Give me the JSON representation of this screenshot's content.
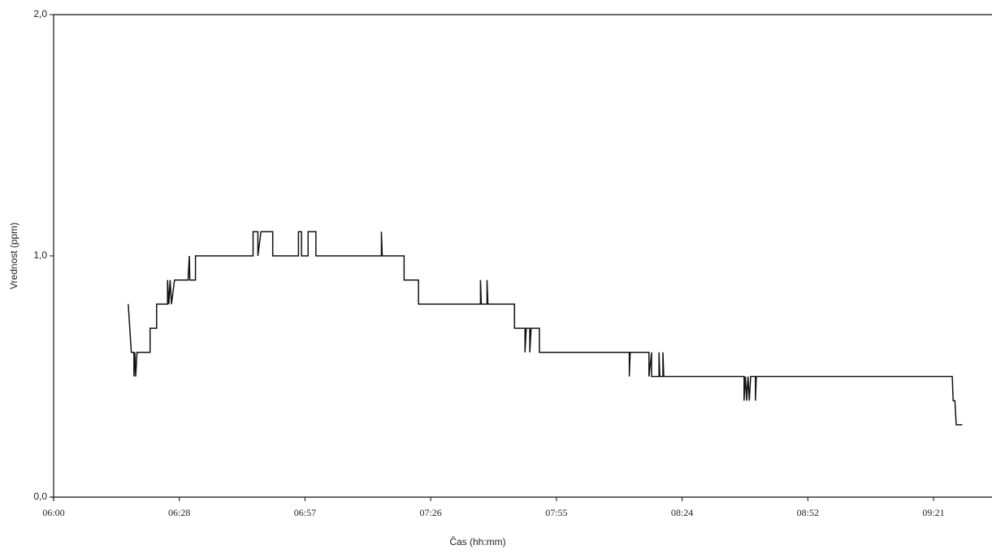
{
  "chart_data": {
    "type": "line",
    "x_label": "Čas (hh:mm)",
    "y_label": "Vrednost (ppm)",
    "xlim": [
      360,
      575
    ],
    "ylim": [
      0,
      2
    ],
    "xticks": [
      {
        "value": 360,
        "label": "06:00"
      },
      {
        "value": 388.8,
        "label": "06:28"
      },
      {
        "value": 417.6,
        "label": "06:57"
      },
      {
        "value": 446.4,
        "label": "07:26"
      },
      {
        "value": 475.2,
        "label": "07:55"
      },
      {
        "value": 504,
        "label": "08:24"
      },
      {
        "value": 532.8,
        "label": "08:52"
      },
      {
        "value": 561.6,
        "label": "09:21"
      }
    ],
    "yticks": [
      {
        "value": 0,
        "label": "0,0"
      },
      {
        "value": 1,
        "label": "1,0"
      },
      {
        "value": 2,
        "label": "2,0"
      }
    ],
    "grid": false,
    "series": [
      {
        "color": "#111111",
        "x": [
          377.1,
          377.8,
          378.4,
          378.4,
          378.6,
          378.8,
          379.1,
          382.1,
          382.1,
          383.6,
          383.6,
          386.1,
          386.1,
          386.4,
          386.7,
          387.0,
          387.7,
          390.8,
          391.1,
          391.2,
          392.5,
          392.5,
          405.7,
          405.7,
          406.8,
          406.8,
          407.5,
          410.2,
          410.2,
          416.1,
          416.1,
          416.8,
          416.8,
          418.3,
          418.3,
          420.1,
          420.1,
          435.1,
          435.1,
          435.3,
          440.3,
          440.3,
          443.6,
          443.6,
          457.8,
          457.8,
          458.0,
          459.3,
          459.3,
          459.5,
          465.6,
          465.6,
          468.0,
          468.0,
          468.3,
          469.1,
          469.1,
          469.4,
          471.3,
          471.3,
          491.9,
          491.9,
          492.1,
          496.4,
          496.4,
          497.0,
          497.0,
          498.7,
          498.7,
          498.9,
          499.6,
          499.6,
          499.8,
          518.2,
          518.2,
          518.5,
          518.8,
          519.1,
          519.4,
          519.7,
          520.8,
          520.8,
          521.0,
          565.9,
          566.1,
          566.5,
          566.8,
          568.2
        ],
        "values": [
          0.8,
          0.6,
          0.6,
          0.5,
          0.6,
          0.5,
          0.6,
          0.6,
          0.7,
          0.7,
          0.8,
          0.8,
          0.9,
          0.8,
          0.9,
          0.8,
          0.9,
          0.9,
          1.0,
          0.9,
          0.9,
          1.0,
          1.0,
          1.1,
          1.1,
          1.0,
          1.1,
          1.1,
          1.0,
          1.0,
          1.1,
          1.1,
          1.0,
          1.0,
          1.1,
          1.1,
          1.0,
          1.0,
          1.1,
          1.0,
          1.0,
          0.9,
          0.9,
          0.8,
          0.8,
          0.9,
          0.8,
          0.8,
          0.9,
          0.8,
          0.8,
          0.7,
          0.7,
          0.6,
          0.7,
          0.7,
          0.6,
          0.7,
          0.7,
          0.6,
          0.6,
          0.5,
          0.6,
          0.6,
          0.5,
          0.6,
          0.5,
          0.5,
          0.6,
          0.5,
          0.5,
          0.6,
          0.5,
          0.5,
          0.4,
          0.5,
          0.4,
          0.5,
          0.4,
          0.5,
          0.5,
          0.4,
          0.5,
          0.5,
          0.4,
          0.4,
          0.3,
          0.3
        ]
      }
    ]
  }
}
